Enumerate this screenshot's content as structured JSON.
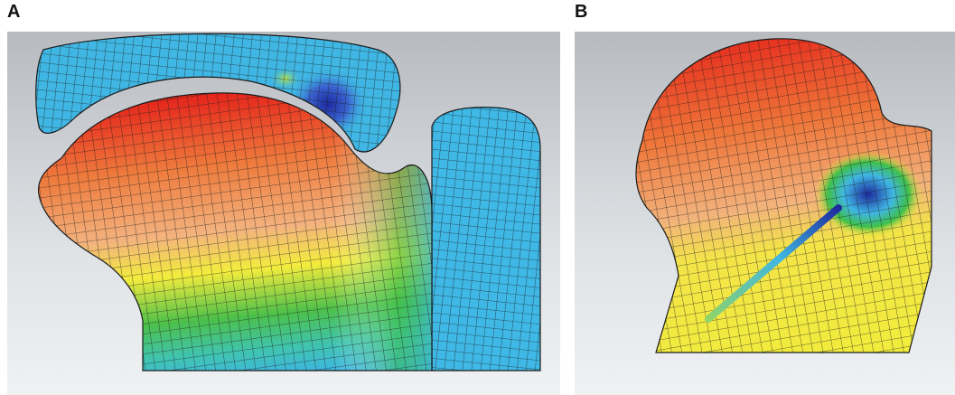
{
  "figure": {
    "panels": [
      {
        "label": "A",
        "description_icon": "fem-mesh-model-a"
      },
      {
        "label": "B",
        "description_icon": "fem-mesh-model-b"
      }
    ],
    "colors": {
      "background_top": "#b9bcc0",
      "background_bottom": "#eceef0",
      "red": "#e8281e",
      "orange": "#f0904a",
      "yellow": "#f2ee3a",
      "green": "#3fbf45",
      "cyan": "#3fb6e3",
      "blue": "#2233a8",
      "mesh_line": "#1a1a1a"
    }
  }
}
